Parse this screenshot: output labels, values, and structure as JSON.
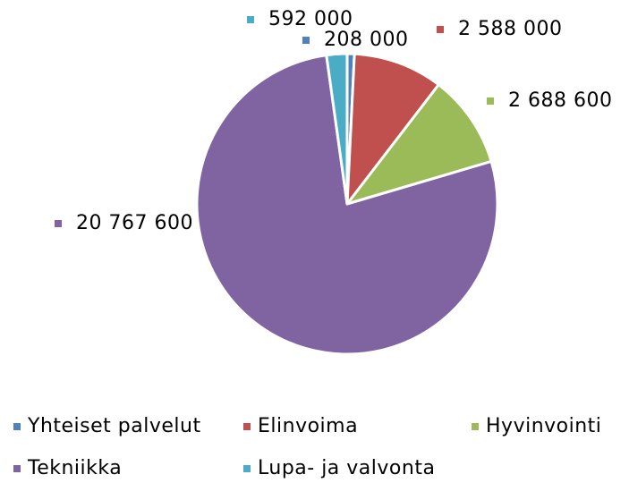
{
  "chart_data": {
    "type": "pie",
    "categories": [
      "Yhteiset palvelut",
      "Elinvoima",
      "Hyvinvointi",
      "Tekniikka",
      "Lupa- ja valvonta"
    ],
    "values": [
      208000,
      2588000,
      2688600,
      20767600,
      592000
    ],
    "value_labels": [
      "208 000",
      "2 588 000",
      "2 688 600",
      "20 767 600",
      "592 000"
    ],
    "colors": [
      "#4f81bd",
      "#c0504d",
      "#9bbb59",
      "#8064a2",
      "#4bacc6"
    ],
    "legend": "bottom"
  }
}
